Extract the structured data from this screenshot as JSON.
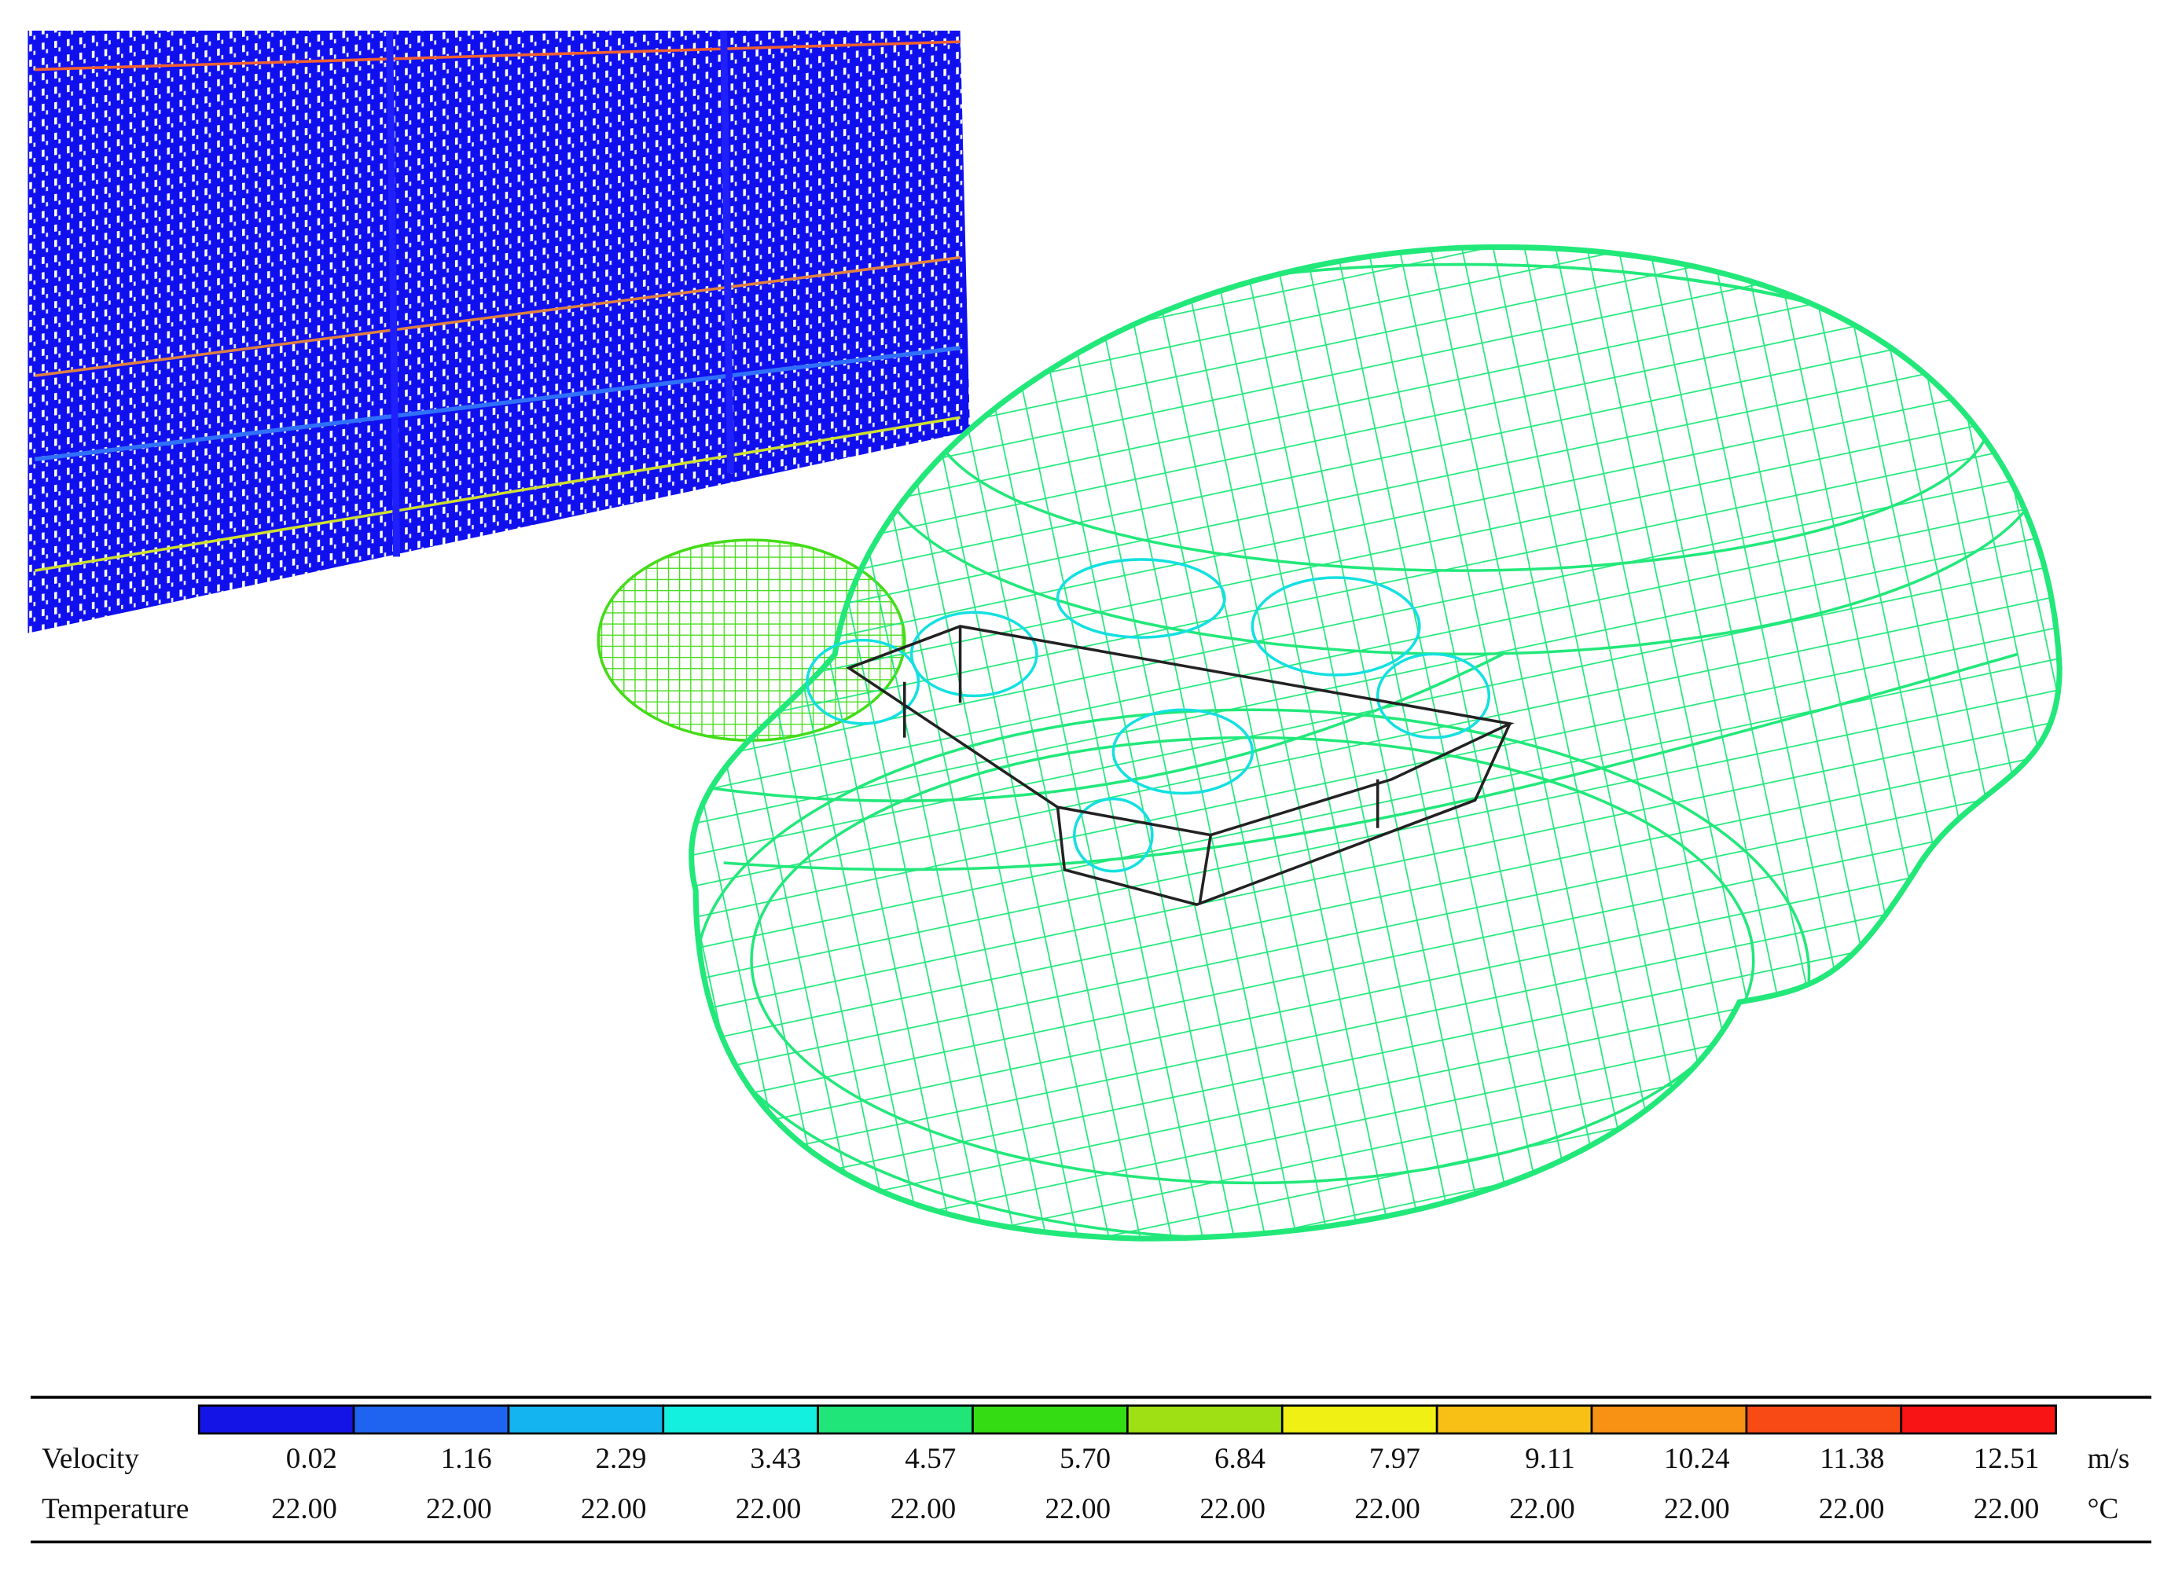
{
  "legend": {
    "colors": [
      "#1414e6",
      "#1e64f0",
      "#14b4f0",
      "#14f0e0",
      "#20e67a",
      "#34dc14",
      "#9ee014",
      "#f0f014",
      "#f8c014",
      "#f89214",
      "#f84a14",
      "#f81414"
    ],
    "rows": [
      {
        "label": "Velocity",
        "values": [
          "0.02",
          "1.16",
          "2.29",
          "3.43",
          "4.57",
          "5.70",
          "6.84",
          "7.97",
          "9.11",
          "10.24",
          "11.38",
          "12.51"
        ],
        "unit": "m/s"
      },
      {
        "label": "Temperature",
        "values": [
          "22.00",
          "22.00",
          "22.00",
          "22.00",
          "22.00",
          "22.00",
          "22.00",
          "22.00",
          "22.00",
          "22.00",
          "22.00",
          "22.00"
        ],
        "unit": "°C"
      }
    ]
  }
}
